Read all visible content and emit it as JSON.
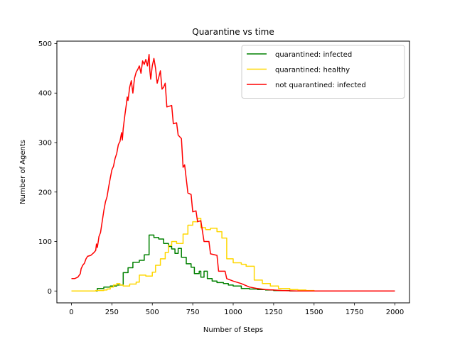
{
  "chart_data": {
    "type": "line",
    "title": "Quarantine vs time",
    "xlabel": "Number of Steps",
    "ylabel": "Number of Agents",
    "xlim": [
      -90,
      2090
    ],
    "ylim": [
      -24,
      505
    ],
    "xticks": [
      0,
      250,
      500,
      750,
      1000,
      1250,
      1500,
      1750,
      2000
    ],
    "yticks": [
      0,
      100,
      200,
      300,
      400,
      500
    ],
    "legend_position": "upper right",
    "grid": false,
    "series": [
      {
        "name": "quarantined: infected",
        "color": "#008000",
        "step": true,
        "points": [
          [
            0,
            0
          ],
          [
            160,
            0
          ],
          [
            160,
            5
          ],
          [
            200,
            5
          ],
          [
            200,
            8
          ],
          [
            240,
            8
          ],
          [
            240,
            10
          ],
          [
            280,
            10
          ],
          [
            280,
            12
          ],
          [
            320,
            12
          ],
          [
            320,
            37
          ],
          [
            350,
            37
          ],
          [
            350,
            47
          ],
          [
            380,
            47
          ],
          [
            380,
            58
          ],
          [
            420,
            58
          ],
          [
            420,
            62
          ],
          [
            450,
            62
          ],
          [
            450,
            73
          ],
          [
            480,
            73
          ],
          [
            480,
            113
          ],
          [
            510,
            113
          ],
          [
            510,
            108
          ],
          [
            540,
            108
          ],
          [
            540,
            105
          ],
          [
            570,
            105
          ],
          [
            570,
            96
          ],
          [
            600,
            96
          ],
          [
            600,
            90
          ],
          [
            620,
            90
          ],
          [
            620,
            85
          ],
          [
            640,
            85
          ],
          [
            640,
            76
          ],
          [
            660,
            76
          ],
          [
            660,
            86
          ],
          [
            680,
            86
          ],
          [
            680,
            68
          ],
          [
            710,
            68
          ],
          [
            710,
            55
          ],
          [
            740,
            55
          ],
          [
            740,
            48
          ],
          [
            760,
            48
          ],
          [
            760,
            35
          ],
          [
            790,
            35
          ],
          [
            790,
            40
          ],
          [
            800,
            40
          ],
          [
            800,
            28
          ],
          [
            820,
            28
          ],
          [
            820,
            40
          ],
          [
            840,
            40
          ],
          [
            840,
            25
          ],
          [
            870,
            25
          ],
          [
            870,
            20
          ],
          [
            900,
            20
          ],
          [
            900,
            17
          ],
          [
            940,
            17
          ],
          [
            940,
            15
          ],
          [
            970,
            15
          ],
          [
            970,
            12
          ],
          [
            1000,
            12
          ],
          [
            1000,
            10
          ],
          [
            1050,
            10
          ],
          [
            1050,
            5
          ],
          [
            1100,
            5
          ],
          [
            1100,
            4
          ],
          [
            1150,
            4
          ],
          [
            1150,
            3
          ],
          [
            1200,
            3
          ],
          [
            1200,
            2
          ],
          [
            1250,
            2
          ],
          [
            1250,
            1
          ],
          [
            1350,
            1
          ],
          [
            1350,
            0
          ],
          [
            2000,
            0
          ]
        ]
      },
      {
        "name": "quarantined: healthy",
        "color": "#FFD700",
        "step": true,
        "points": [
          [
            0,
            0
          ],
          [
            150,
            0
          ],
          [
            150,
            1
          ],
          [
            200,
            1
          ],
          [
            200,
            2
          ],
          [
            220,
            2
          ],
          [
            220,
            4
          ],
          [
            240,
            4
          ],
          [
            240,
            8
          ],
          [
            260,
            8
          ],
          [
            260,
            12
          ],
          [
            280,
            12
          ],
          [
            280,
            15
          ],
          [
            300,
            15
          ],
          [
            300,
            12
          ],
          [
            320,
            12
          ],
          [
            320,
            10
          ],
          [
            360,
            10
          ],
          [
            360,
            14
          ],
          [
            400,
            14
          ],
          [
            400,
            18
          ],
          [
            420,
            18
          ],
          [
            420,
            32
          ],
          [
            460,
            32
          ],
          [
            460,
            30
          ],
          [
            500,
            30
          ],
          [
            500,
            38
          ],
          [
            520,
            38
          ],
          [
            520,
            52
          ],
          [
            550,
            52
          ],
          [
            550,
            65
          ],
          [
            580,
            65
          ],
          [
            580,
            78
          ],
          [
            600,
            78
          ],
          [
            600,
            92
          ],
          [
            620,
            92
          ],
          [
            620,
            100
          ],
          [
            650,
            100
          ],
          [
            650,
            96
          ],
          [
            690,
            96
          ],
          [
            690,
            115
          ],
          [
            720,
            115
          ],
          [
            720,
            133
          ],
          [
            750,
            133
          ],
          [
            750,
            140
          ],
          [
            780,
            140
          ],
          [
            780,
            147
          ],
          [
            800,
            147
          ],
          [
            800,
            128
          ],
          [
            830,
            128
          ],
          [
            830,
            124
          ],
          [
            860,
            124
          ],
          [
            860,
            127
          ],
          [
            900,
            127
          ],
          [
            900,
            120
          ],
          [
            930,
            120
          ],
          [
            930,
            107
          ],
          [
            960,
            107
          ],
          [
            960,
            65
          ],
          [
            1000,
            65
          ],
          [
            1000,
            57
          ],
          [
            1050,
            57
          ],
          [
            1050,
            54
          ],
          [
            1080,
            54
          ],
          [
            1080,
            50
          ],
          [
            1130,
            50
          ],
          [
            1130,
            22
          ],
          [
            1180,
            22
          ],
          [
            1180,
            15
          ],
          [
            1230,
            15
          ],
          [
            1230,
            10
          ],
          [
            1280,
            10
          ],
          [
            1280,
            5
          ],
          [
            1350,
            5
          ],
          [
            1350,
            3
          ],
          [
            1400,
            3
          ],
          [
            1400,
            2
          ],
          [
            1450,
            2
          ],
          [
            1450,
            1
          ],
          [
            1500,
            1
          ],
          [
            1500,
            0
          ],
          [
            2000,
            0
          ]
        ]
      },
      {
        "name": "not quarantined: infected",
        "color": "#FF0000",
        "step": false,
        "points": [
          [
            0,
            25
          ],
          [
            20,
            25
          ],
          [
            40,
            28
          ],
          [
            55,
            35
          ],
          [
            60,
            45
          ],
          [
            70,
            52
          ],
          [
            80,
            56
          ],
          [
            90,
            65
          ],
          [
            100,
            70
          ],
          [
            120,
            72
          ],
          [
            140,
            78
          ],
          [
            150,
            82
          ],
          [
            155,
            95
          ],
          [
            160,
            88
          ],
          [
            165,
            98
          ],
          [
            170,
            110
          ],
          [
            180,
            118
          ],
          [
            190,
            140
          ],
          [
            200,
            162
          ],
          [
            210,
            180
          ],
          [
            220,
            190
          ],
          [
            230,
            210
          ],
          [
            240,
            228
          ],
          [
            250,
            245
          ],
          [
            260,
            252
          ],
          [
            270,
            268
          ],
          [
            280,
            278
          ],
          [
            290,
            296
          ],
          [
            300,
            302
          ],
          [
            310,
            320
          ],
          [
            315,
            305
          ],
          [
            320,
            328
          ],
          [
            330,
            355
          ],
          [
            340,
            378
          ],
          [
            345,
            392
          ],
          [
            350,
            385
          ],
          [
            360,
            412
          ],
          [
            370,
            425
          ],
          [
            380,
            400
          ],
          [
            390,
            430
          ],
          [
            400,
            442
          ],
          [
            410,
            448
          ],
          [
            420,
            455
          ],
          [
            430,
            440
          ],
          [
            440,
            465
          ],
          [
            450,
            458
          ],
          [
            460,
            468
          ],
          [
            470,
            455
          ],
          [
            480,
            478
          ],
          [
            485,
            445
          ],
          [
            490,
            428
          ],
          [
            500,
            455
          ],
          [
            510,
            470
          ],
          [
            520,
            450
          ],
          [
            530,
            420
          ],
          [
            540,
            432
          ],
          [
            550,
            445
          ],
          [
            560,
            408
          ],
          [
            570,
            412
          ],
          [
            580,
            420
          ],
          [
            590,
            372
          ],
          [
            620,
            375
          ],
          [
            630,
            338
          ],
          [
            650,
            340
          ],
          [
            660,
            315
          ],
          [
            680,
            308
          ],
          [
            690,
            250
          ],
          [
            700,
            255
          ],
          [
            720,
            198
          ],
          [
            740,
            195
          ],
          [
            750,
            160
          ],
          [
            770,
            162
          ],
          [
            780,
            140
          ],
          [
            800,
            142
          ],
          [
            820,
            100
          ],
          [
            850,
            100
          ],
          [
            860,
            75
          ],
          [
            900,
            72
          ],
          [
            910,
            40
          ],
          [
            950,
            40
          ],
          [
            960,
            25
          ],
          [
            1000,
            20
          ],
          [
            1050,
            15
          ],
          [
            1100,
            8
          ],
          [
            1150,
            5
          ],
          [
            1200,
            3
          ],
          [
            1250,
            2
          ],
          [
            1300,
            1
          ],
          [
            1400,
            0
          ],
          [
            2000,
            0
          ]
        ]
      }
    ]
  }
}
